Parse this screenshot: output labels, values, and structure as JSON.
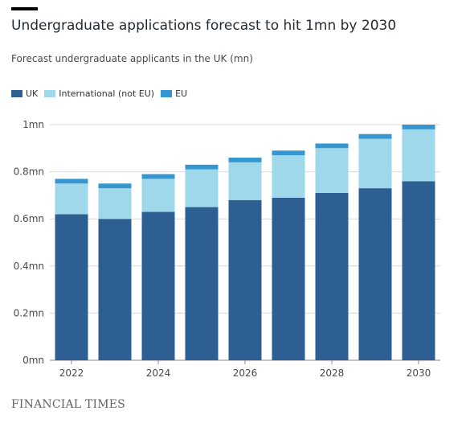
{
  "chart_data": {
    "type": "bar",
    "stacked": true,
    "title": "Undergraduate applications forecast to hit 1mn by 2030",
    "subtitle": "Forecast undergraduate applicants in the UK (mn)",
    "categories": [
      "2022",
      "2023",
      "2024",
      "2025",
      "2026",
      "2027",
      "2028",
      "2029",
      "2030"
    ],
    "tick_labels": [
      "2022",
      "",
      "2024",
      "",
      "2026",
      "",
      "2028",
      "",
      "2030"
    ],
    "series": [
      {
        "name": "UK",
        "color": "#2d5f93",
        "values": [
          0.62,
          0.6,
          0.63,
          0.65,
          0.68,
          0.69,
          0.71,
          0.73,
          0.76
        ]
      },
      {
        "name": "International (not EU)",
        "color": "#9fd8ea",
        "values": [
          0.13,
          0.13,
          0.14,
          0.16,
          0.16,
          0.18,
          0.19,
          0.21,
          0.22
        ]
      },
      {
        "name": "EU",
        "color": "#3596d0",
        "values": [
          0.02,
          0.02,
          0.02,
          0.02,
          0.02,
          0.02,
          0.02,
          0.02,
          0.02
        ]
      }
    ],
    "ylim": [
      0,
      1
    ],
    "yticks": [
      0,
      0.2,
      0.4,
      0.6,
      0.8,
      1.0
    ],
    "ytick_labels": [
      "0mn",
      "0.2mn",
      "0.4mn",
      "0.6mn",
      "0.8mn",
      "1mn"
    ],
    "legend_position": "top-left",
    "grid": true
  },
  "footer": {
    "source": "FINANCIAL TIMES"
  }
}
